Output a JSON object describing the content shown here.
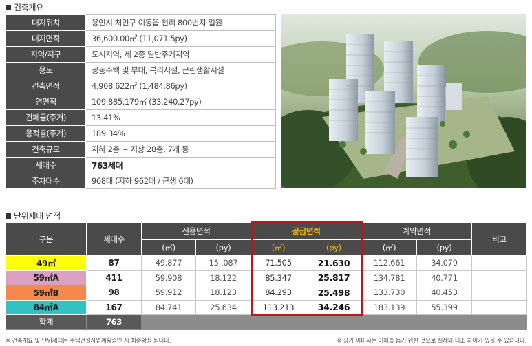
{
  "overview": {
    "title": "건축개요",
    "rows": [
      {
        "label": "대지위치",
        "value": "용인시 처인구 이동읍 천리 800번지 일원"
      },
      {
        "label": "대지면적",
        "value": "36,600.00㎡ (11,071.5py)"
      },
      {
        "label": "지역/지구",
        "value": "도시지역, 제 2종 일반주거지역"
      },
      {
        "label": "용도",
        "value": "공동주택 및 부대, 복리시설, 근린생활시설"
      },
      {
        "label": "건축면적",
        "value": "4,908.622㎡ (1,484.86py)"
      },
      {
        "label": "연면적",
        "value": "109,885.179㎡ (33,240.27py)"
      },
      {
        "label": "건폐율(주거)",
        "value": "13.41%"
      },
      {
        "label": "용적률(주거)",
        "value": "189.34%"
      },
      {
        "label": "건축규모",
        "value": "지하 2층 ~ 지상 28층, 7개 동"
      },
      {
        "label": "세대수",
        "value": "763세대"
      },
      {
        "label": "주차대수",
        "value": "968대 (지하 962대 / 근생 6대)"
      }
    ]
  },
  "units": {
    "title": "단위세대 면적",
    "headers": {
      "type": "구분",
      "households": "세대수",
      "exclusive": "전용면적",
      "supply": "공급면적",
      "contract": "계약면적",
      "remarks": "비고",
      "sqm": "(㎡)",
      "py": "(py)"
    },
    "rows": [
      {
        "type": "49㎡",
        "color": "#ffff00",
        "households": "87",
        "ex_sqm": "49.877",
        "ex_py": "15,.087",
        "sup_sqm": "71.505",
        "sup_py": "21.630",
        "con_sqm": "112.661",
        "con_py": "34.079",
        "remarks": ""
      },
      {
        "type": "59㎡A",
        "color": "#d9a0c0",
        "households": "411",
        "ex_sqm": "59.908",
        "ex_py": "18.122",
        "sup_sqm": "85.347",
        "sup_py": "25.817",
        "con_sqm": "134.781",
        "con_py": "40.771",
        "remarks": ""
      },
      {
        "type": "59㎡B",
        "color": "#f4894a",
        "households": "98",
        "ex_sqm": "59.912",
        "ex_py": "18.123",
        "sup_sqm": "84.293",
        "sup_py": "25.498",
        "con_sqm": "133.730",
        "con_py": "40.453",
        "remarks": ""
      },
      {
        "type": "84㎡A",
        "color": "#33c2c2",
        "households": "167",
        "ex_sqm": "84.741",
        "ex_py": "25.634",
        "sup_sqm": "113.213",
        "sup_py": "34.246",
        "con_sqm": "183.139",
        "con_py": "55.399",
        "remarks": ""
      }
    ],
    "total_label": "합계",
    "total_households": "763"
  },
  "notes": {
    "left": "※ 건축개요 및 단위세대는 주택건설사업계획승인 시 최종확정 됩니다.",
    "right": "※ 상기 이미지는 이해를 돕기 위한 것으로 실제와 다소 차이가 있을 수 있습니다."
  },
  "colors": {
    "header_bg": "#4a4a4a",
    "supply_accent": "#ffc000",
    "supply_box": "#c0151b",
    "total_bg": "#8c8c8c"
  }
}
